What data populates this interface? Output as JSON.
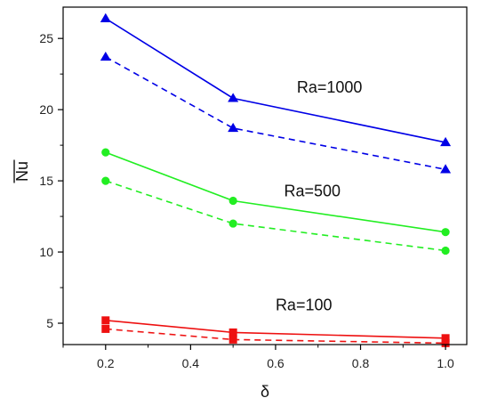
{
  "chart_data": {
    "type": "line",
    "xlabel": "δ",
    "ylabel": "Nu",
    "ylabel_overline": true,
    "xlim": [
      0.1,
      1.05
    ],
    "ylim": [
      3.5,
      27.2
    ],
    "xticks": [
      0.2,
      0.4,
      0.6,
      0.8,
      1.0
    ],
    "xtick_labels": [
      "0.2",
      "0.4",
      "0.6",
      "0.8",
      "1.0"
    ],
    "yticks": [
      5,
      10,
      15,
      20,
      25
    ],
    "ytick_labels": [
      "5",
      "10",
      "15",
      "20",
      "25"
    ],
    "grid": false,
    "x": [
      0.2,
      0.5,
      1.0
    ],
    "series": [
      {
        "group": "Ra=1000",
        "style": "solid",
        "marker": "triangle",
        "color": "#0000e6",
        "values": [
          26.4,
          20.8,
          17.7
        ]
      },
      {
        "group": "Ra=1000",
        "style": "dashed",
        "marker": "triangle",
        "color": "#0000e6",
        "values": [
          23.7,
          18.7,
          15.8
        ]
      },
      {
        "group": "Ra=500",
        "style": "solid",
        "marker": "circle",
        "color": "#22ee22",
        "values": [
          17.0,
          13.6,
          11.4
        ]
      },
      {
        "group": "Ra=500",
        "style": "dashed",
        "marker": "circle",
        "color": "#22ee22",
        "values": [
          15.0,
          12.0,
          10.1
        ]
      },
      {
        "group": "Ra=100",
        "style": "solid",
        "marker": "square",
        "color": "#ee1111",
        "values": [
          5.2,
          4.35,
          3.95
        ]
      },
      {
        "group": "Ra=100",
        "style": "dashed",
        "marker": "square",
        "color": "#ee1111",
        "values": [
          4.6,
          3.85,
          3.6
        ]
      }
    ],
    "annotations": [
      {
        "text": "Ra=1000",
        "x": 0.65,
        "y": 21.2
      },
      {
        "text": "Ra=500",
        "x": 0.62,
        "y": 13.9
      },
      {
        "text": "Ra=100",
        "x": 0.6,
        "y": 5.9
      }
    ]
  }
}
